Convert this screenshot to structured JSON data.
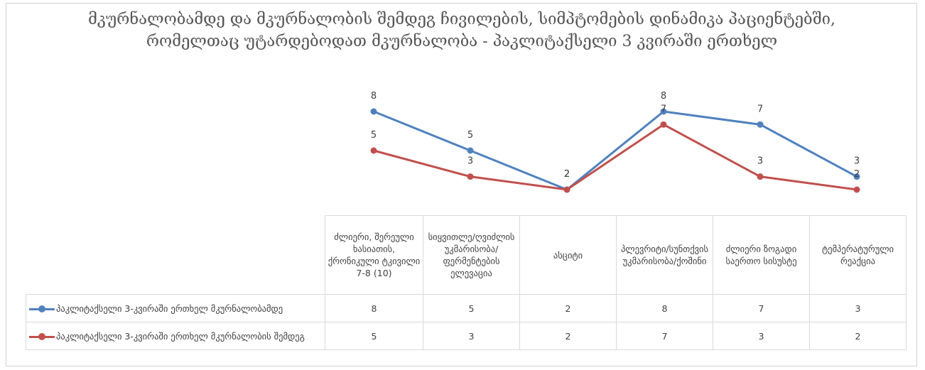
{
  "chart_data": {
    "type": "line",
    "title": "მკურნალობამდე და მკურნალობის შემდეგ ჩივილების, სიმპტომების დინამიკა პაციენტებში, რომელთაც უტარდებოდათ მკურნალობა - პაკლიტაქსელი 3 კვირაში ერთხელ",
    "categories": [
      "ძლიერი, შერეული ხასიათის, ქრონიკული ტკივილი 7-8 (10)",
      "სიყვითლე/ღვიძლის უკმარისობა/ფერმენტების ელევაცია",
      "ასციტი",
      "პლევრიტი/სუნთქვის უკმარისობა/ქოშინი",
      "ძლიერი ზოგადი საერთო სისუსტე",
      "ტემპერატურული რეაქცია"
    ],
    "series": [
      {
        "name": "პაკლიტაქსელი 3-კვირაში ერთხელ მკურნალობამდე",
        "values": [
          8,
          5,
          2,
          8,
          7,
          3
        ],
        "color": "#4f81bd"
      },
      {
        "name": "პაკლიტაქსელი 3-კვირაში ერთხელ მკურნალობის შემდეგ",
        "values": [
          5,
          3,
          2,
          7,
          3,
          2
        ],
        "color": "#c0504d"
      }
    ],
    "ylim": [
      2,
      8
    ],
    "grid": false,
    "legend": "data-table"
  }
}
